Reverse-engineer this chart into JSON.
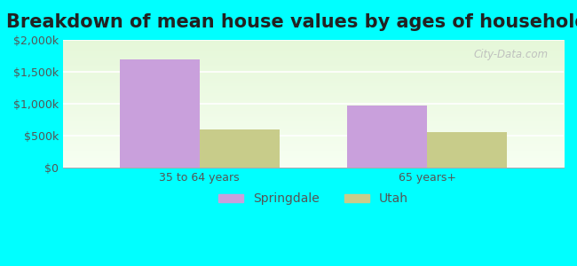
{
  "title": "Breakdown of mean house values by ages of householders",
  "categories": [
    "35 to 64 years",
    "65 years+"
  ],
  "springdale_values": [
    1700000,
    975000
  ],
  "utah_values": [
    600000,
    560000
  ],
  "springdale_color": "#c9a0dc",
  "utah_color": "#c8cc8a",
  "background_outer": "#00ffff",
  "ylim": [
    0,
    2000000
  ],
  "yticks": [
    0,
    500000,
    1000000,
    1500000,
    2000000
  ],
  "ytick_labels": [
    "$0",
    "$500k",
    "$1,000k",
    "$1,500k",
    "$2,000k"
  ],
  "bar_width": 0.35,
  "legend_labels": [
    "Springdale",
    "Utah"
  ],
  "title_fontsize": 15,
  "tick_fontsize": 9,
  "legend_fontsize": 10,
  "watermark_text": "City-Data.com"
}
